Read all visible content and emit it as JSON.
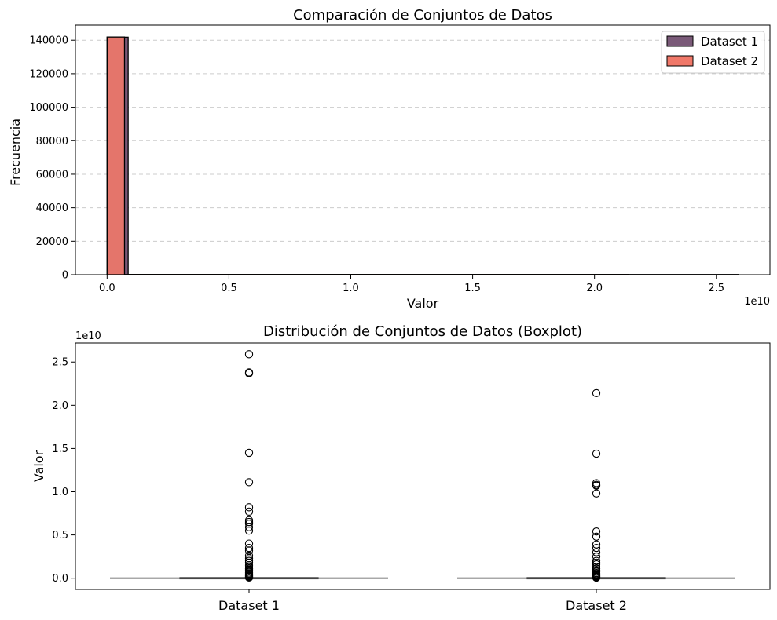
{
  "chart_data": [
    {
      "type": "histogram",
      "title": "Comparación de Conjuntos de Datos",
      "xlabel": "Valor",
      "ylabel": "Frecuencia",
      "x_offset_text": "1e10",
      "xlim": [
        -1300000000,
        27200000000
      ],
      "ylim": [
        0,
        149000
      ],
      "xticks": [
        0,
        5000000000,
        10000000000,
        15000000000,
        20000000000,
        25000000000
      ],
      "xtick_labels": [
        "0.0",
        "0.5",
        "1.0",
        "1.5",
        "2.0",
        "2.5"
      ],
      "yticks": [
        0,
        20000,
        40000,
        60000,
        80000,
        100000,
        120000,
        140000
      ],
      "ytick_labels": [
        "0",
        "20000",
        "40000",
        "60000",
        "80000",
        "100000",
        "120000",
        "140000"
      ],
      "grid": "horizontal dashed",
      "legend_position": "top-right",
      "series": [
        {
          "name": "Dataset 1",
          "color": "#7a5a78",
          "bins": [
            {
              "x0": 0,
              "x1": 864000000,
              "count": 141800
            },
            {
              "x0": 864000000,
              "x1": 25920000000,
              "count": 40
            }
          ]
        },
        {
          "name": "Dataset 2",
          "color": "#f07869",
          "bins": [
            {
              "x0": 0,
              "x1": 714000000,
              "count": 141900
            },
            {
              "x0": 714000000,
              "x1": 21420000000,
              "count": 35
            }
          ]
        }
      ]
    },
    {
      "type": "boxplot",
      "title": "Distribución de Conjuntos de Datos (Boxplot)",
      "ylabel": "Valor",
      "y_offset_text": "1e10",
      "ylim": [
        -1300000000,
        27200000000
      ],
      "yticks": [
        0,
        5000000000,
        10000000000,
        15000000000,
        20000000000,
        25000000000
      ],
      "ytick_labels": [
        "0.0",
        "0.5",
        "1.0",
        "1.5",
        "2.0",
        "2.5"
      ],
      "categories": [
        "Dataset 1",
        "Dataset 2"
      ],
      "boxes": [
        {
          "name": "Dataset 1",
          "q1": 0,
          "median": 0,
          "q3": 0,
          "whisker_low": 0,
          "whisker_high": 0,
          "outliers": [
            25900000000,
            23800000000,
            23700000000,
            14500000000,
            11100000000,
            8200000000,
            7700000000,
            6700000000,
            6500000000,
            6300000000,
            5900000000,
            5500000000,
            4000000000,
            3500000000,
            3200000000,
            2600000000,
            2300000000,
            2000000000,
            1800000000,
            1500000000,
            1300000000,
            1100000000,
            950000000,
            800000000,
            650000000,
            520000000,
            420000000,
            330000000,
            250000000,
            180000000,
            120000000,
            70000000
          ]
        },
        {
          "name": "Dataset 2",
          "q1": 0,
          "median": 0,
          "q3": 0,
          "whisker_low": 0,
          "whisker_high": 0,
          "outliers": [
            21400000000,
            14400000000,
            11000000000,
            10800000000,
            10700000000,
            9800000000,
            5400000000,
            4800000000,
            3900000000,
            3500000000,
            3000000000,
            2500000000,
            2000000000,
            1800000000,
            1600000000,
            1300000000,
            1100000000,
            900000000,
            750000000,
            600000000,
            480000000,
            380000000,
            290000000,
            210000000,
            150000000,
            100000000,
            60000000
          ]
        }
      ]
    }
  ]
}
